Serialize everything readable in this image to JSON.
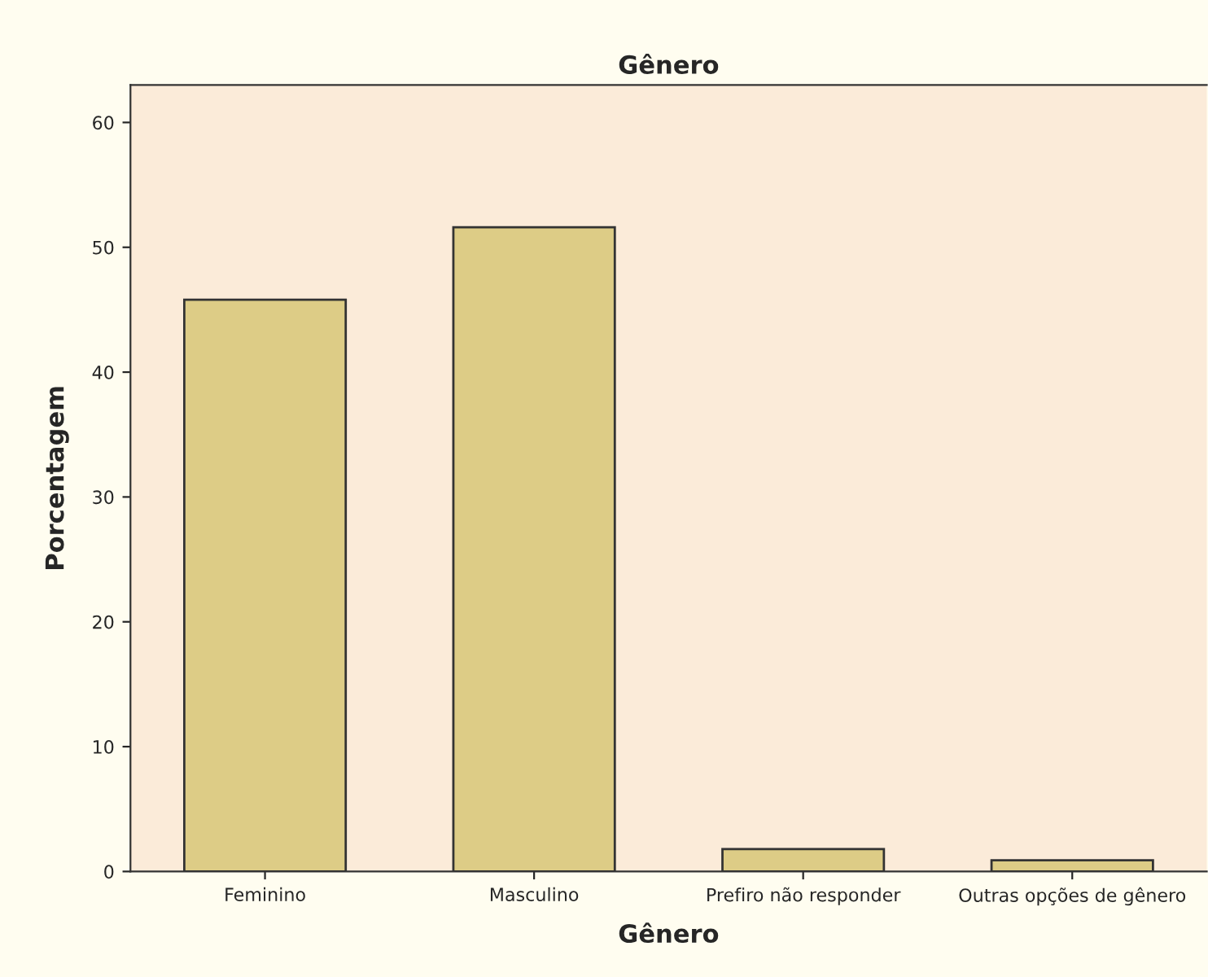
{
  "chart_data": {
    "type": "bar",
    "title": "Gênero",
    "xlabel": "Gênero",
    "ylabel": "Porcentagem",
    "categories": [
      "Feminino",
      "Masculino",
      "Prefiro não responder",
      "Outras opções de gênero"
    ],
    "values": [
      45.8,
      51.6,
      1.8,
      0.9
    ],
    "color": "#ddcc86",
    "ylim": [
      0,
      63
    ],
    "yticks": [
      0,
      10,
      20,
      30,
      40,
      50,
      60
    ],
    "grid": false
  }
}
